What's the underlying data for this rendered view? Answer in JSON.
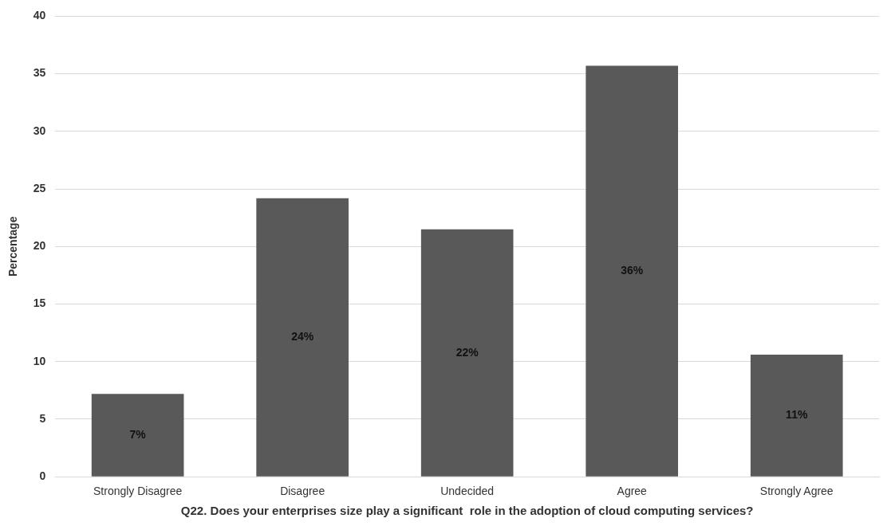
{
  "chart_data": {
    "type": "bar",
    "xlabel": "Q22. Does your enterprises size play a significant  role in the adoption of cloud computing services?",
    "ylabel": "Percentage",
    "categories": [
      "Strongly Disagree",
      "Disagree",
      "Undecided",
      "Agree",
      "Strongly Agree"
    ],
    "values": [
      7.2,
      24.2,
      21.5,
      35.7,
      10.6
    ],
    "value_labels": [
      "7%",
      "24%",
      "22%",
      "36%",
      "11%"
    ],
    "color": "#595959",
    "ylim": [
      0,
      40
    ],
    "yticks": [
      0,
      5,
      10,
      15,
      20,
      25,
      30,
      35,
      40
    ],
    "grid": "y",
    "legend": false
  }
}
